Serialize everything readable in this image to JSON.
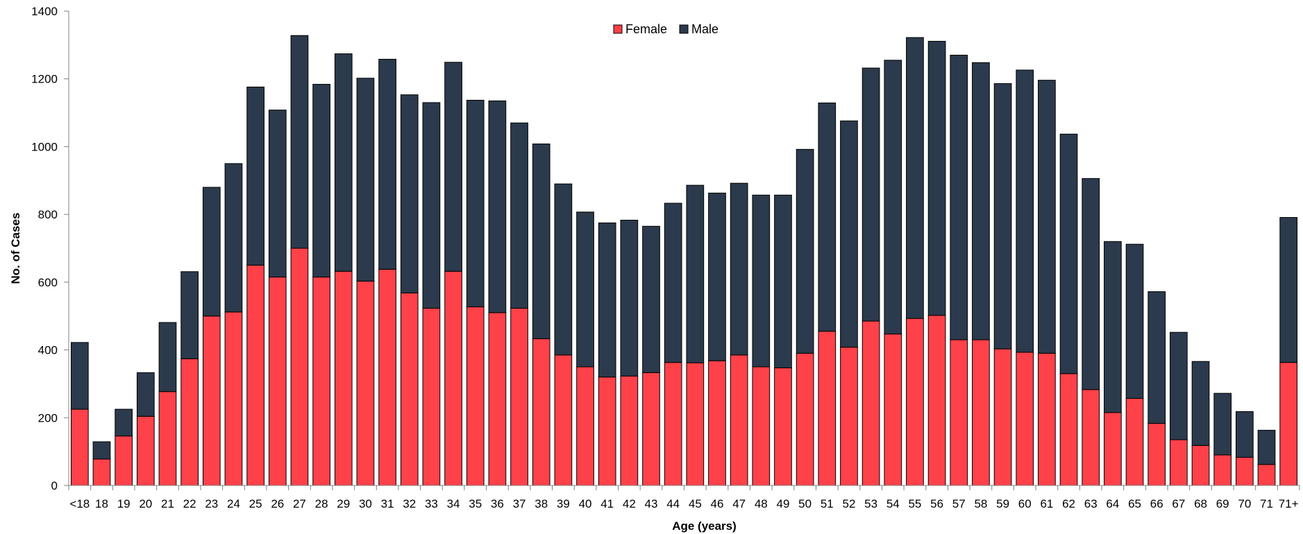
{
  "chart_data": {
    "type": "bar",
    "stacked": true,
    "title": "",
    "xlabel": "Age (years)",
    "ylabel": "No. of Cases",
    "ylim": [
      0,
      1400
    ],
    "yticks": [
      0,
      200,
      400,
      600,
      800,
      1000,
      1200,
      1400
    ],
    "grid": false,
    "legend_position": "top-center",
    "categories": [
      "<18",
      "18",
      "19",
      "20",
      "21",
      "22",
      "23",
      "24",
      "25",
      "26",
      "27",
      "28",
      "29",
      "30",
      "31",
      "32",
      "33",
      "34",
      "35",
      "36",
      "37",
      "38",
      "39",
      "40",
      "41",
      "42",
      "43",
      "44",
      "45",
      "46",
      "47",
      "48",
      "49",
      "50",
      "51",
      "52",
      "53",
      "54",
      "55",
      "56",
      "57",
      "58",
      "59",
      "60",
      "61",
      "62",
      "63",
      "64",
      "65",
      "66",
      "67",
      "68",
      "69",
      "70",
      "71",
      "71+"
    ],
    "series": [
      {
        "name": "Female",
        "color": "#ff4149",
        "values": [
          225,
          78,
          146,
          204,
          277,
          374,
          500,
          512,
          650,
          615,
          700,
          615,
          632,
          603,
          638,
          568,
          523,
          632,
          527,
          510,
          523,
          433,
          385,
          350,
          320,
          323,
          333,
          363,
          362,
          368,
          385,
          350,
          347,
          390,
          455,
          408,
          485,
          447,
          493,
          502,
          430,
          430,
          403,
          393,
          390,
          330,
          283,
          215,
          257,
          183,
          135,
          118,
          90,
          83,
          62,
          363
        ]
      },
      {
        "name": "Male",
        "color": "#2b3a4c",
        "values": [
          197,
          51,
          79,
          129,
          204,
          257,
          380,
          438,
          526,
          493,
          628,
          569,
          642,
          599,
          620,
          585,
          607,
          617,
          610,
          625,
          547,
          575,
          505,
          457,
          455,
          460,
          432,
          470,
          524,
          495,
          507,
          507,
          510,
          602,
          674,
          668,
          747,
          808,
          829,
          809,
          840,
          818,
          783,
          833,
          806,
          707,
          623,
          505,
          455,
          389,
          317,
          248,
          182,
          135,
          101,
          428
        ]
      }
    ]
  }
}
